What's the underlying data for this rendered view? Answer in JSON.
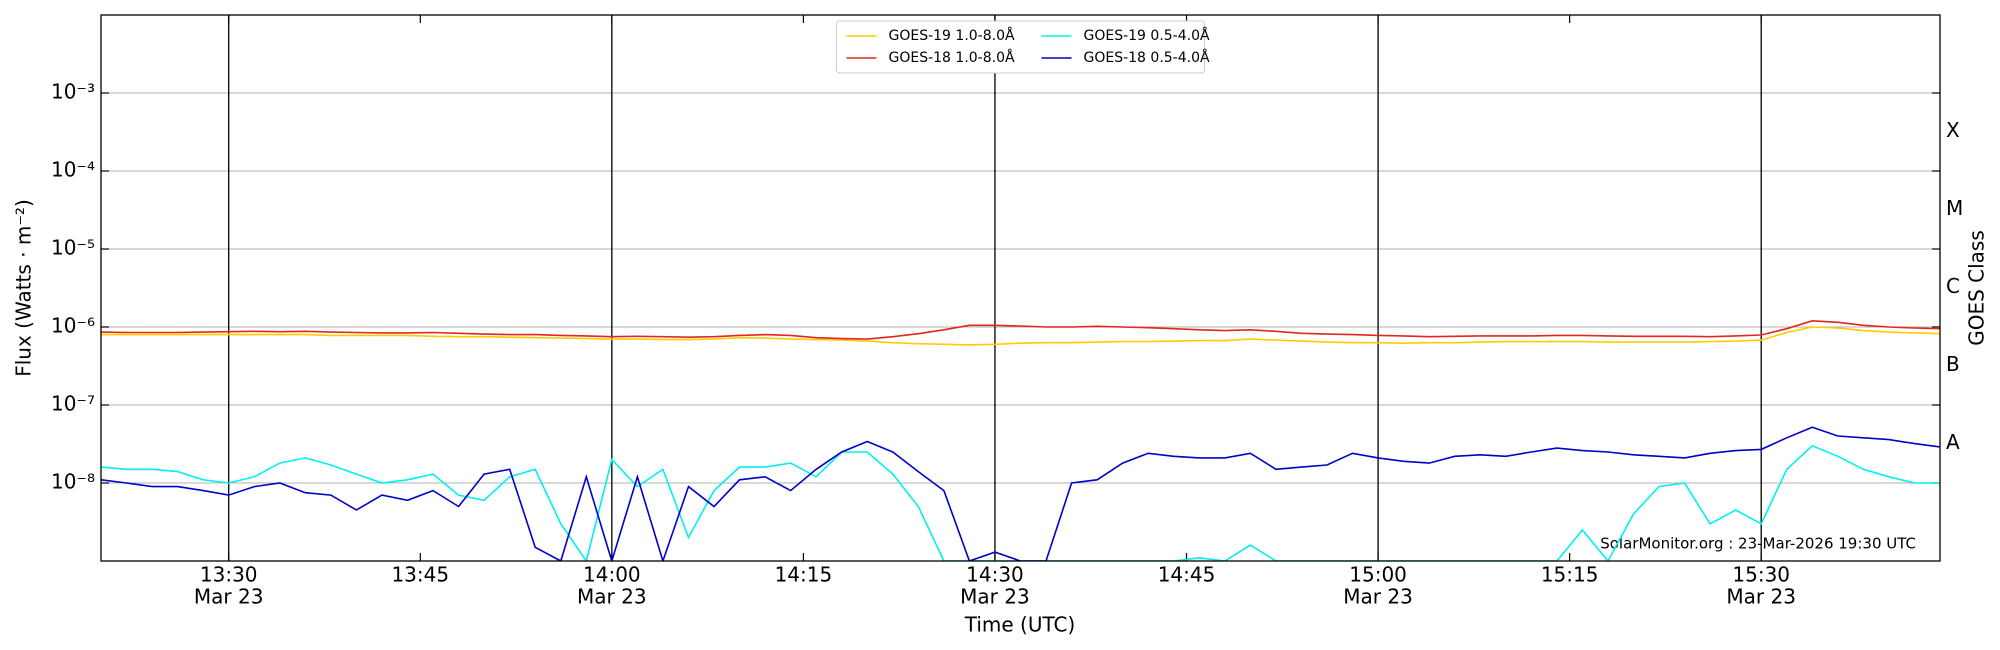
{
  "chart_data": {
    "type": "line",
    "xlabel": "Time (UTC)",
    "ylabel": "Flux (Watts · m⁻²)",
    "y2label": "GOES Class",
    "annotation": "SolarMonitor.org : 23-Mar-2026 19:30 UTC",
    "yscale": "log",
    "grid": true,
    "legend": "upper center",
    "xlim": [
      "13:20",
      "15:44"
    ],
    "ylim": [
      1e-09,
      0.01
    ],
    "y2lim": [
      1e-09,
      0.01
    ],
    "xticks": [
      {
        "value": "13:30",
        "label": "13:30",
        "date": "Mar 23"
      },
      {
        "value": "13:45",
        "label": "13:45"
      },
      {
        "value": "14:00",
        "label": "14:00",
        "date": "Mar 23"
      },
      {
        "value": "14:15",
        "label": "14:15"
      },
      {
        "value": "14:30",
        "label": "14:30",
        "date": "Mar 23"
      },
      {
        "value": "14:45",
        "label": "14:45"
      },
      {
        "value": "15:00",
        "label": "15:00",
        "date": "Mar 23"
      },
      {
        "value": "15:15",
        "label": "15:15"
      },
      {
        "value": "15:30",
        "label": "15:30",
        "date": "Mar 23"
      }
    ],
    "vlines": [
      "13:30",
      "14:00",
      "14:30",
      "15:00",
      "15:30"
    ],
    "yticks": [
      {
        "value": 1e-08,
        "label": "10⁻⁸"
      },
      {
        "value": 1e-07,
        "label": "10⁻⁷"
      },
      {
        "value": 1e-06,
        "label": "10⁻⁶"
      },
      {
        "value": 1e-05,
        "label": "10⁻⁵"
      },
      {
        "value": 0.0001,
        "label": "10⁻⁴"
      },
      {
        "value": 0.001,
        "label": "10⁻³"
      }
    ],
    "y2ticks": [
      {
        "value": 3.2e-08,
        "label": "A"
      },
      {
        "value": 3.2e-07,
        "label": "B"
      },
      {
        "value": 3.2e-06,
        "label": "C"
      },
      {
        "value": 3.2e-05,
        "label": "M"
      },
      {
        "value": 0.00032,
        "label": "X"
      }
    ],
    "x": [
      "13:20",
      "13:22",
      "13:24",
      "13:26",
      "13:28",
      "13:30",
      "13:32",
      "13:34",
      "13:36",
      "13:38",
      "13:40",
      "13:42",
      "13:44",
      "13:46",
      "13:48",
      "13:50",
      "13:52",
      "13:54",
      "13:56",
      "13:58",
      "14:00",
      "14:02",
      "14:04",
      "14:06",
      "14:08",
      "14:10",
      "14:12",
      "14:14",
      "14:16",
      "14:18",
      "14:20",
      "14:22",
      "14:24",
      "14:26",
      "14:28",
      "14:30",
      "14:32",
      "14:34",
      "14:36",
      "14:38",
      "14:40",
      "14:42",
      "14:44",
      "14:46",
      "14:48",
      "14:50",
      "14:52",
      "14:54",
      "14:56",
      "14:58",
      "15:00",
      "15:02",
      "15:04",
      "15:06",
      "15:08",
      "15:10",
      "15:12",
      "15:14",
      "15:16",
      "15:18",
      "15:20",
      "15:22",
      "15:24",
      "15:26",
      "15:28",
      "15:30",
      "15:32",
      "15:34",
      "15:36",
      "15:38",
      "15:40",
      "15:42",
      "15:44"
    ],
    "series": [
      {
        "name": "GOES-19 1.0-8.0Å",
        "color": "#ffcc00",
        "values": [
          8e-07,
          8e-07,
          8e-07,
          8e-07,
          8e-07,
          8e-07,
          8e-07,
          8e-07,
          8e-07,
          7.8e-07,
          7.8e-07,
          7.8e-07,
          7.8e-07,
          7.6e-07,
          7.5e-07,
          7.5e-07,
          7.4e-07,
          7.3e-07,
          7.2e-07,
          7.1e-07,
          7e-07,
          7e-07,
          6.9e-07,
          6.9e-07,
          7e-07,
          7.3e-07,
          7.2e-07,
          7e-07,
          6.9e-07,
          6.8e-07,
          6.6e-07,
          6.3e-07,
          6.1e-07,
          6e-07,
          5.9e-07,
          6e-07,
          6.2e-07,
          6.3e-07,
          6.3e-07,
          6.4e-07,
          6.5e-07,
          6.5e-07,
          6.6e-07,
          6.7e-07,
          6.7e-07,
          7e-07,
          6.8e-07,
          6.6e-07,
          6.4e-07,
          6.3e-07,
          6.3e-07,
          6.2e-07,
          6.3e-07,
          6.3e-07,
          6.4e-07,
          6.5e-07,
          6.5e-07,
          6.5e-07,
          6.5e-07,
          6.4e-07,
          6.4e-07,
          6.4e-07,
          6.4e-07,
          6.5e-07,
          6.6e-07,
          6.8e-07,
          8.5e-07,
          1e-06,
          9.7e-07,
          9e-07,
          8.6e-07,
          8.4e-07,
          8.2e-07
        ]
      },
      {
        "name": "GOES-18 1.0-8.0Å",
        "color": "#e3261f",
        "values": [
          8.6e-07,
          8.5e-07,
          8.5e-07,
          8.5e-07,
          8.6e-07,
          8.7e-07,
          8.8e-07,
          8.7e-07,
          8.8e-07,
          8.6e-07,
          8.5e-07,
          8.4e-07,
          8.4e-07,
          8.5e-07,
          8.3e-07,
          8.1e-07,
          8e-07,
          8e-07,
          7.8e-07,
          7.7e-07,
          7.5e-07,
          7.6e-07,
          7.5e-07,
          7.4e-07,
          7.5e-07,
          7.8e-07,
          8e-07,
          7.8e-07,
          7.3e-07,
          7.1e-07,
          7e-07,
          7.5e-07,
          8.2e-07,
          9.2e-07,
          1.05e-06,
          1.05e-06,
          1.03e-06,
          1e-06,
          1e-06,
          1.02e-06,
          1e-06,
          9.8e-07,
          9.5e-07,
          9.2e-07,
          9e-07,
          9.2e-07,
          8.8e-07,
          8.3e-07,
          8.1e-07,
          8e-07,
          7.8e-07,
          7.7e-07,
          7.5e-07,
          7.6e-07,
          7.7e-07,
          7.7e-07,
          7.7e-07,
          7.8e-07,
          7.8e-07,
          7.7e-07,
          7.6e-07,
          7.6e-07,
          7.6e-07,
          7.5e-07,
          7.7e-07,
          7.9e-07,
          9.5e-07,
          1.2e-06,
          1.15e-06,
          1.05e-06,
          1e-06,
          9.7e-07,
          9.5e-07
        ]
      },
      {
        "name": "GOES-19 0.5-4.0Å",
        "color": "#00f0f0",
        "values": [
          1.6e-08,
          1.5e-08,
          1.5e-08,
          1.4e-08,
          1.1e-08,
          1e-08,
          1.2e-08,
          1.8e-08,
          2.1e-08,
          1.7e-08,
          1.3e-08,
          1e-08,
          1.1e-08,
          1.3e-08,
          7e-09,
          6e-09,
          1.2e-08,
          1.5e-08,
          3e-09,
          1e-09,
          2e-08,
          9e-09,
          1.5e-08,
          2e-09,
          8e-09,
          1.6e-08,
          1.6e-08,
          1.8e-08,
          1.2e-08,
          2.5e-08,
          2.5e-08,
          1.3e-08,
          5e-09,
          1e-09,
          1e-09,
          1e-09,
          1e-09,
          1e-09,
          1e-09,
          1e-09,
          1e-09,
          1e-09,
          1e-09,
          1.1e-09,
          1e-09,
          1.6e-09,
          1e-09,
          1e-09,
          1e-09,
          1e-09,
          1e-09,
          1e-09,
          1e-09,
          1e-09,
          1e-09,
          1e-09,
          1e-09,
          1e-09,
          2.5e-09,
          1e-09,
          4e-09,
          9e-09,
          1e-08,
          3e-09,
          4.5e-09,
          3e-09,
          1.5e-08,
          3e-08,
          2.2e-08,
          1.5e-08,
          1.2e-08,
          1e-08,
          1e-08
        ]
      },
      {
        "name": "GOES-18 0.5-4.0Å",
        "color": "#0000cc",
        "values": [
          1.1e-08,
          1e-08,
          9e-09,
          9e-09,
          8e-09,
          7e-09,
          9e-09,
          1e-08,
          7.5e-09,
          7e-09,
          4.5e-09,
          7e-09,
          6e-09,
          8e-09,
          5e-09,
          1.3e-08,
          1.5e-08,
          1.5e-09,
          1e-09,
          1.2e-08,
          1e-09,
          1.2e-08,
          1e-09,
          9e-09,
          5e-09,
          1.1e-08,
          1.2e-08,
          8e-09,
          1.5e-08,
          2.5e-08,
          3.4e-08,
          2.5e-08,
          1.4e-08,
          8e-09,
          1e-09,
          1.3e-09,
          1e-09,
          1e-09,
          1e-08,
          1.1e-08,
          1.8e-08,
          2.4e-08,
          2.2e-08,
          2.1e-08,
          2.1e-08,
          2.4e-08,
          1.5e-08,
          1.6e-08,
          1.7e-08,
          2.4e-08,
          2.1e-08,
          1.9e-08,
          1.8e-08,
          2.2e-08,
          2.3e-08,
          2.2e-08,
          2.5e-08,
          2.8e-08,
          2.6e-08,
          2.5e-08,
          2.3e-08,
          2.2e-08,
          2.1e-08,
          2.4e-08,
          2.6e-08,
          2.7e-08,
          3.8e-08,
          5.2e-08,
          4e-08,
          3.8e-08,
          3.6e-08,
          3.2e-08,
          2.9e-08
        ]
      }
    ]
  }
}
